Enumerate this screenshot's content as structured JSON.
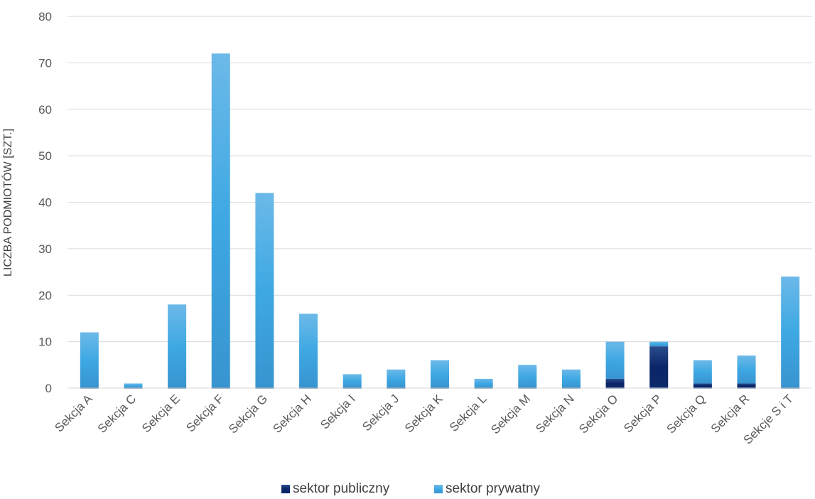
{
  "colors": {
    "public": "#0d2a6b",
    "private": "#49a8e2",
    "grid": "#d9d9d9",
    "text": "#595959"
  },
  "chart_data": {
    "type": "bar",
    "stacked": true,
    "categories": [
      "Sekcja A",
      "Sekcja C",
      "Sekcja E",
      "Sekcja F",
      "Sekcja G",
      "Sekcja H",
      "Sekcja I",
      "Sekcja J",
      "Sekcja K",
      "Sekcja L",
      "Sekcja M",
      "Sekcja N",
      "Sekcja O",
      "Sekcja P",
      "Sekcja Q",
      "Sekcja R",
      "Sekcje S i T"
    ],
    "series": [
      {
        "name": "sektor publiczny",
        "values": [
          0,
          0,
          0,
          0,
          0,
          0,
          0,
          0,
          0,
          0,
          0,
          0,
          2,
          9,
          1,
          1,
          0
        ]
      },
      {
        "name": "sektor prywatny",
        "values": [
          12,
          1,
          18,
          72,
          42,
          16,
          3,
          4,
          6,
          2,
          5,
          4,
          8,
          1,
          5,
          6,
          24
        ]
      }
    ],
    "title": "",
    "xlabel": "",
    "ylabel": "LICZBA PODMIOTÓW [SZT.]",
    "ylim": [
      0,
      80
    ],
    "yticks": [
      "0",
      "10",
      "20",
      "30",
      "40",
      "50",
      "60",
      "70",
      "80"
    ],
    "grid": true,
    "legend": "bottom"
  }
}
